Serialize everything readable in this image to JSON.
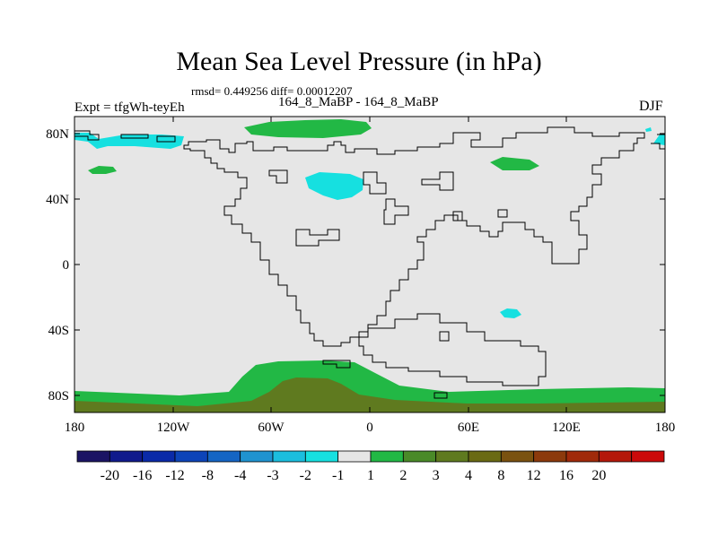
{
  "title": "Mean Sea Level Pressure (in hPa)",
  "stats": "rmsd= 0.449256 diff= 0.00012207",
  "expt": "Expt = tfgWh-teyEh",
  "case_label": "164_8_MaBP - 164_8_MaBP",
  "season": "DJF",
  "lat_ticks": [
    "80N",
    "40N",
    "0",
    "40S",
    "80S"
  ],
  "lon_ticks": [
    "180",
    "120W",
    "60W",
    "0",
    "60E",
    "120E",
    "180"
  ],
  "colorbar": {
    "colors": [
      "#1b1464",
      "#101a8c",
      "#0a2aa8",
      "#0d44b8",
      "#1565c4",
      "#1f93d0",
      "#1bbede",
      "#16e0e0",
      "#e6e6e6",
      "#22b845",
      "#4a8a28",
      "#5f7a1f",
      "#6a6a14",
      "#7a5210",
      "#8c3a0c",
      "#a02a0a",
      "#b4180a",
      "#cc0a0a"
    ],
    "labels": [
      "-20",
      "-16",
      "-12",
      "-8",
      "-4",
      "-3",
      "-2",
      "-1",
      "1",
      "2",
      "3",
      "4",
      "8",
      "12",
      "16",
      "20"
    ]
  },
  "colors": {
    "land_bg": "#e6e6e6",
    "green": "#22b845",
    "dark_olive": "#5f7a1f",
    "cyan": "#16e0e0"
  }
}
